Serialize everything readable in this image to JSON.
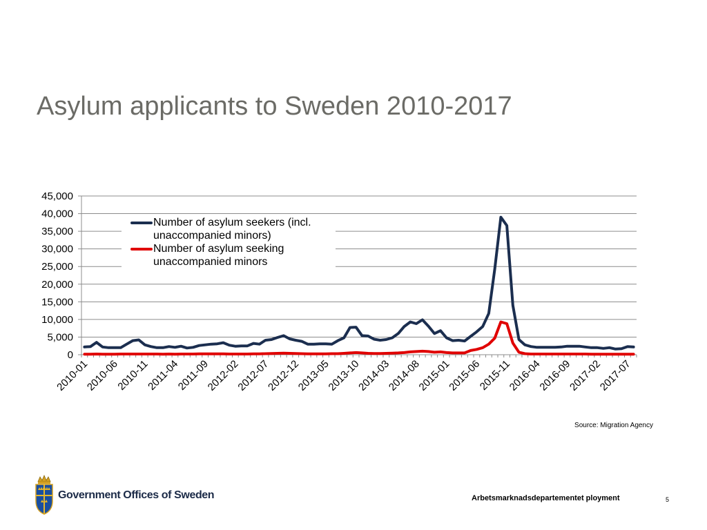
{
  "slide": {
    "title": "Asylum applicants to Sweden 2010-2017",
    "source": "Source: Migration Agency",
    "organization": "Government Offices of Sweden",
    "department": "Arbetsmarknadsdepartementet ployment",
    "page_number": "5"
  },
  "chart_data": {
    "type": "line",
    "title": "",
    "xlabel": "",
    "ylabel": "",
    "ylim": [
      0,
      45000
    ],
    "yticks": [
      0,
      5000,
      10000,
      15000,
      20000,
      25000,
      30000,
      35000,
      40000,
      45000
    ],
    "ytick_labels": [
      "0",
      "5,000",
      "10,000",
      "15,000",
      "20,000",
      "25,000",
      "30,000",
      "35,000",
      "40,000",
      "45,000"
    ],
    "x_start": "2010-01",
    "x_end": "2017-07",
    "x_tick_labels": [
      "2010-01",
      "2010-06",
      "2010-11",
      "2011-04",
      "2011-09",
      "2012-02",
      "2012-07",
      "2012-12",
      "2013-05",
      "2013-10",
      "2014-03",
      "2014-08",
      "2015-01",
      "2015-06",
      "2015-11",
      "2016-04",
      "2016-09",
      "2017-02",
      "2017-07"
    ],
    "grid": true,
    "legend_position": "top-left",
    "series": [
      {
        "name": "Number of asylum seekers  (incl. unaccompanied minors)",
        "color": "#1b2e4f",
        "values": [
          2200,
          2300,
          3500,
          2200,
          2000,
          2000,
          2000,
          3000,
          4000,
          4200,
          2800,
          2300,
          2000,
          2000,
          2300,
          2100,
          2400,
          1900,
          2100,
          2600,
          2800,
          3000,
          3100,
          3400,
          2700,
          2400,
          2500,
          2500,
          3200,
          3000,
          4100,
          4300,
          4900,
          5400,
          4500,
          4100,
          3800,
          3000,
          3000,
          3100,
          3100,
          3000,
          4000,
          4800,
          7700,
          7800,
          5400,
          5300,
          4400,
          4100,
          4300,
          4800,
          6000,
          8000,
          9300,
          8800,
          9900,
          8100,
          6000,
          6800,
          4800,
          4000,
          4100,
          3900,
          5200,
          6500,
          8000,
          11700,
          24300,
          39000,
          36600,
          14000,
          4300,
          2800,
          2300,
          2100,
          2100,
          2100,
          2100,
          2200,
          2400,
          2400,
          2400,
          2200,
          2000,
          2000,
          1800,
          2000,
          1600,
          1700,
          2300,
          2200
        ],
        "line_width": 4
      },
      {
        "name": "Number of asylum seeking unaccompanied minors",
        "color": "#e00000",
        "values": [
          150,
          150,
          200,
          150,
          150,
          150,
          200,
          200,
          200,
          200,
          200,
          200,
          200,
          150,
          200,
          150,
          200,
          200,
          200,
          250,
          250,
          250,
          250,
          250,
          200,
          200,
          200,
          200,
          250,
          250,
          300,
          350,
          400,
          450,
          400,
          350,
          300,
          250,
          250,
          250,
          250,
          300,
          300,
          400,
          500,
          600,
          500,
          400,
          350,
          350,
          400,
          450,
          500,
          600,
          800,
          900,
          1000,
          900,
          700,
          800,
          600,
          500,
          500,
          500,
          1200,
          1500,
          2000,
          3000,
          4700,
          9300,
          8800,
          3300,
          700,
          300,
          200,
          200,
          200,
          200,
          200,
          200,
          200,
          200,
          200,
          200,
          150,
          150,
          150,
          150,
          150,
          150,
          150,
          150
        ],
        "line_width": 4
      }
    ]
  }
}
